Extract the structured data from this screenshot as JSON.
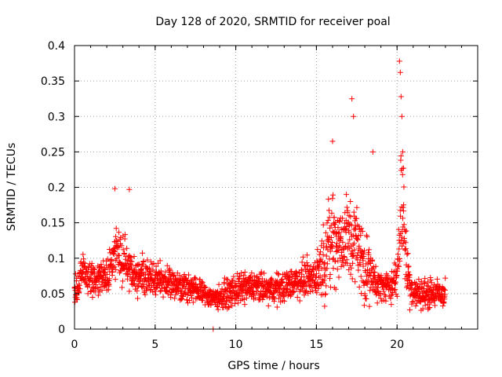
{
  "chart_data": {
    "type": "scatter",
    "title": "Day 128 of 2020, SRMTID for receiver poal",
    "xlabel": "GPS time / hours",
    "ylabel": "SRMTID / TECUs",
    "xlim": [
      0,
      25
    ],
    "ylim": [
      0,
      0.4
    ],
    "x_ticks": [
      "0",
      "5",
      "10",
      "15",
      "20"
    ],
    "y_ticks": [
      "0",
      "0.05",
      "0.1",
      "0.15",
      "0.2",
      "0.25",
      "0.3",
      "0.35",
      "0.4"
    ],
    "grid": true,
    "marker": "+",
    "series_color": "#ff0000",
    "profile": {
      "note": "approximate envelope of the plotted points (hour -> typical SRMTID)",
      "hours": [
        0,
        0.5,
        1,
        1.5,
        2,
        2.5,
        3,
        3.5,
        4,
        5,
        6,
        7,
        8,
        8.5,
        9,
        10,
        11,
        12,
        13,
        14,
        15,
        15.5,
        16,
        16.5,
        17,
        17.5,
        18,
        18.5,
        19,
        19.5,
        20,
        20.3,
        20.6,
        21,
        22,
        23
      ],
      "center": [
        0.05,
        0.08,
        0.07,
        0.07,
        0.075,
        0.11,
        0.1,
        0.08,
        0.075,
        0.07,
        0.065,
        0.06,
        0.05,
        0.045,
        0.045,
        0.055,
        0.06,
        0.055,
        0.06,
        0.07,
        0.075,
        0.1,
        0.13,
        0.12,
        0.13,
        0.12,
        0.09,
        0.07,
        0.06,
        0.06,
        0.07,
        0.2,
        0.08,
        0.05,
        0.05,
        0.05
      ],
      "spread": [
        0.03,
        0.04,
        0.035,
        0.035,
        0.035,
        0.06,
        0.05,
        0.04,
        0.035,
        0.035,
        0.03,
        0.03,
        0.025,
        0.02,
        0.025,
        0.03,
        0.03,
        0.03,
        0.03,
        0.035,
        0.04,
        0.08,
        0.1,
        0.08,
        0.1,
        0.08,
        0.08,
        0.04,
        0.03,
        0.03,
        0.04,
        0.15,
        0.06,
        0.03,
        0.03,
        0.03
      ]
    },
    "highlights": [
      {
        "x": 2.5,
        "y": 0.198
      },
      {
        "x": 3.4,
        "y": 0.197
      },
      {
        "x": 16.0,
        "y": 0.265
      },
      {
        "x": 17.2,
        "y": 0.325
      },
      {
        "x": 17.3,
        "y": 0.3
      },
      {
        "x": 18.5,
        "y": 0.25
      },
      {
        "x": 20.15,
        "y": 0.378
      },
      {
        "x": 20.2,
        "y": 0.362
      },
      {
        "x": 20.25,
        "y": 0.328
      },
      {
        "x": 20.3,
        "y": 0.3
      },
      {
        "x": 20.35,
        "y": 0.25
      },
      {
        "x": 20.4,
        "y": 0.227
      },
      {
        "x": 8.6,
        "y": 0.0
      }
    ]
  }
}
